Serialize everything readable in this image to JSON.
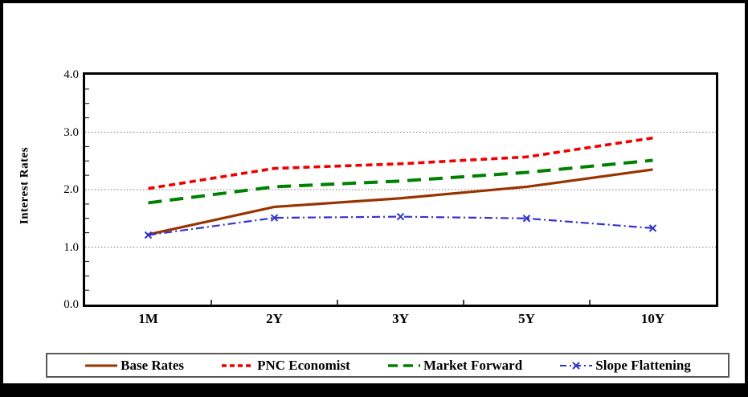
{
  "chart_data": {
    "type": "line",
    "title": "",
    "ylabel": "Interest Rates",
    "xlabel": "",
    "categories": [
      "1M",
      "2Y",
      "3Y",
      "5Y",
      "10Y"
    ],
    "ylim": [
      0.0,
      4.0
    ],
    "ytick_values": [
      0,
      1,
      2,
      3,
      4
    ],
    "ytick_labels": [
      "0.0",
      "1.0",
      "2.0",
      "3.0",
      "4.0"
    ],
    "grid_values": [
      1,
      2,
      3
    ],
    "grid_style": "dotted",
    "legend_position": "bottom-box",
    "series": [
      {
        "name": "Base Rates",
        "color": "#993300",
        "line_style": "solid",
        "marker": "none",
        "values": [
          1.22,
          1.7,
          1.85,
          2.05,
          2.35
        ]
      },
      {
        "name": "PNC Economist",
        "color": "#EE0000",
        "line_style": "dashed",
        "marker": "none",
        "values": [
          2.02,
          2.37,
          2.45,
          2.57,
          2.9
        ]
      },
      {
        "name": "Market Forward",
        "color": "#008000",
        "line_style": "long-dash",
        "marker": "none",
        "values": [
          1.77,
          2.05,
          2.15,
          2.3,
          2.51
        ]
      },
      {
        "name": "Slope Flattening",
        "color": "#3333CC",
        "line_style": "dash-dot",
        "marker": "x",
        "values": [
          1.21,
          1.51,
          1.53,
          1.5,
          1.33
        ]
      }
    ]
  }
}
